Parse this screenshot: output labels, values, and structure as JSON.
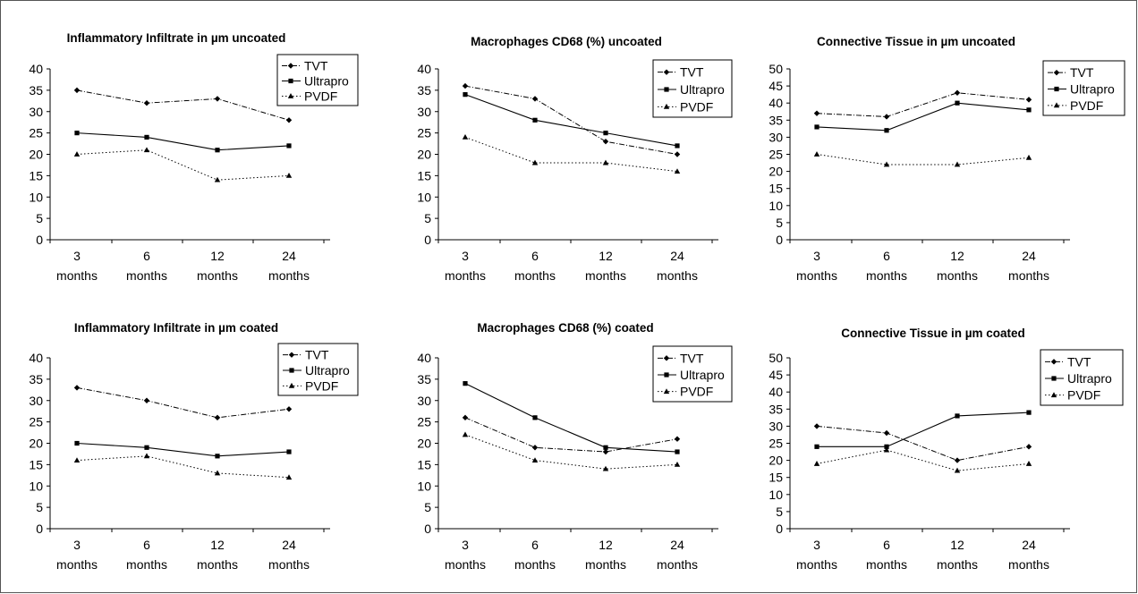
{
  "chart_data": [
    {
      "type": "line",
      "title": "Inflammatory Infiltrate in µm uncoated",
      "categories": [
        "3 months",
        "6 months",
        "12 months",
        "24 months"
      ],
      "category_lines": [
        [
          "3",
          "months"
        ],
        [
          "6",
          "months"
        ],
        [
          "12",
          "months"
        ],
        [
          "24",
          "months"
        ]
      ],
      "ylim": [
        0,
        40
      ],
      "ystep": 5,
      "series": [
        {
          "name": "TVT",
          "values": [
            35,
            32,
            33,
            28
          ],
          "style": "dashdot",
          "marker": "diamond"
        },
        {
          "name": "Ultrapro",
          "values": [
            25,
            24,
            21,
            22
          ],
          "style": "solid",
          "marker": "square"
        },
        {
          "name": "PVDF",
          "values": [
            20,
            21,
            14,
            15
          ],
          "style": "dotted",
          "marker": "triangle"
        }
      ],
      "legend": "top-right",
      "grid": false
    },
    {
      "type": "line",
      "title": "Macrophages CD68 (%) uncoated",
      "categories": [
        "3 months",
        "6 months",
        "12 months",
        "24 months"
      ],
      "category_lines": [
        [
          "3",
          "months"
        ],
        [
          "6",
          "months"
        ],
        [
          "12",
          "months"
        ],
        [
          "24",
          "months"
        ]
      ],
      "ylim": [
        0,
        40
      ],
      "ystep": 5,
      "series": [
        {
          "name": "TVT",
          "values": [
            36,
            33,
            23,
            20
          ],
          "style": "dashdot",
          "marker": "diamond"
        },
        {
          "name": "Ultrapro",
          "values": [
            34,
            28,
            25,
            22
          ],
          "style": "solid",
          "marker": "square"
        },
        {
          "name": "PVDF",
          "values": [
            24,
            18,
            18,
            16
          ],
          "style": "dotted",
          "marker": "triangle"
        }
      ],
      "legend": "top-right",
      "grid": false
    },
    {
      "type": "line",
      "title": "Connective Tissue in µm uncoated",
      "categories": [
        "3 months",
        "6 months",
        "12 months",
        "24 months"
      ],
      "category_lines": [
        [
          "3",
          "months"
        ],
        [
          "6",
          "months"
        ],
        [
          "12",
          "months"
        ],
        [
          "24",
          "months"
        ]
      ],
      "ylim": [
        0,
        50
      ],
      "ystep": 5,
      "series": [
        {
          "name": "TVT",
          "values": [
            37,
            36,
            43,
            41
          ],
          "style": "dashdot",
          "marker": "diamond"
        },
        {
          "name": "Ultrapro",
          "values": [
            33,
            32,
            40,
            38
          ],
          "style": "solid",
          "marker": "square"
        },
        {
          "name": "PVDF",
          "values": [
            25,
            22,
            22,
            24
          ],
          "style": "dotted",
          "marker": "triangle"
        }
      ],
      "legend": "top-right",
      "grid": false
    },
    {
      "type": "line",
      "title": "Inflammatory Infiltrate in µm coated",
      "categories": [
        "3 months",
        "6 months",
        "12 months",
        "24 months"
      ],
      "category_lines": [
        [
          "3",
          "months"
        ],
        [
          "6",
          "months"
        ],
        [
          "12",
          "months"
        ],
        [
          "24",
          "months"
        ]
      ],
      "ylim": [
        0,
        40
      ],
      "ystep": 5,
      "series": [
        {
          "name": "TVT",
          "values": [
            33,
            30,
            26,
            28
          ],
          "style": "dashdot",
          "marker": "diamond"
        },
        {
          "name": "Ultrapro",
          "values": [
            20,
            19,
            17,
            18
          ],
          "style": "solid",
          "marker": "square"
        },
        {
          "name": "PVDF",
          "values": [
            16,
            17,
            13,
            12
          ],
          "style": "dotted",
          "marker": "triangle"
        }
      ],
      "legend": "top-right",
      "grid": false
    },
    {
      "type": "line",
      "title": "Macrophages CD68 (%) coated",
      "categories": [
        "3 months",
        "6 months",
        "12 months",
        "24 months"
      ],
      "category_lines": [
        [
          "3",
          "months"
        ],
        [
          "6",
          "months"
        ],
        [
          "12",
          "months"
        ],
        [
          "24",
          "months"
        ]
      ],
      "ylim": [
        0,
        40
      ],
      "ystep": 5,
      "series": [
        {
          "name": "TVT",
          "values": [
            26,
            19,
            18,
            21
          ],
          "style": "dashdot",
          "marker": "diamond"
        },
        {
          "name": "Ultrapro",
          "values": [
            34,
            26,
            19,
            18
          ],
          "style": "solid",
          "marker": "square"
        },
        {
          "name": "PVDF",
          "values": [
            22,
            16,
            14,
            15
          ],
          "style": "dotted",
          "marker": "triangle"
        }
      ],
      "legend": "top-right",
      "grid": false
    },
    {
      "type": "line",
      "title": "Connective Tissue in µm coated",
      "categories": [
        "3 months",
        "6 months",
        "12 months",
        "24 months"
      ],
      "category_lines": [
        [
          "3",
          "months"
        ],
        [
          "6",
          "months"
        ],
        [
          "12",
          "months"
        ],
        [
          "24",
          "months"
        ]
      ],
      "ylim": [
        0,
        50
      ],
      "ystep": 5,
      "series": [
        {
          "name": "TVT",
          "values": [
            30,
            28,
            20,
            24
          ],
          "style": "dashdot",
          "marker": "diamond"
        },
        {
          "name": "Ultrapro",
          "values": [
            24,
            24,
            33,
            34
          ],
          "style": "solid",
          "marker": "square"
        },
        {
          "name": "PVDF",
          "values": [
            19,
            23,
            17,
            19
          ],
          "style": "dotted",
          "marker": "triangle"
        }
      ],
      "legend": "top-right",
      "grid": false
    }
  ]
}
